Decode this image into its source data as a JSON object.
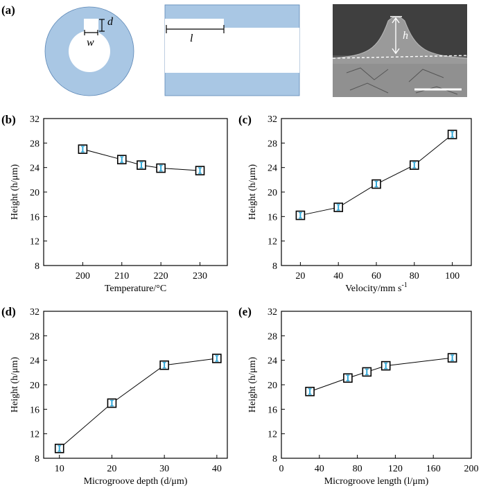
{
  "panel_labels": {
    "a": "(a)",
    "b": "(b)",
    "c": "(c)",
    "d": "(d)",
    "e": "(e)"
  },
  "schematic": {
    "label_d": "d",
    "label_w": "w",
    "label_l": "l",
    "label_h": "h",
    "colors": {
      "fill": "#a9c7e4",
      "sem_bg": "#6d6d6d"
    }
  },
  "chart_data": [
    {
      "id": "b",
      "type": "line",
      "marker": "open-square",
      "x": [
        200,
        210,
        215,
        220,
        230
      ],
      "y": [
        27,
        25.3,
        24.4,
        23.9,
        23.5
      ],
      "xlabel": "Temperature/°C",
      "ylabel": "Height (h/μm)",
      "xlim": [
        190,
        237
      ],
      "ylim": [
        8,
        32
      ],
      "xticks": [
        200,
        210,
        220,
        230
      ],
      "yticks": [
        8,
        12,
        16,
        20,
        24,
        28,
        32
      ]
    },
    {
      "id": "c",
      "type": "line",
      "marker": "open-square",
      "x": [
        20,
        40,
        60,
        80,
        100
      ],
      "y": [
        16.2,
        17.5,
        21.3,
        24.4,
        29.4
      ],
      "xlabel": "Velocity/mm s",
      "xlabel_sup": "-1",
      "ylabel": "Height (h/μm)",
      "xlim": [
        10,
        110
      ],
      "ylim": [
        8,
        32
      ],
      "xticks": [
        20,
        40,
        60,
        80,
        100
      ],
      "yticks": [
        8,
        12,
        16,
        20,
        24,
        28,
        32
      ]
    },
    {
      "id": "d",
      "type": "line",
      "marker": "open-square",
      "x": [
        10,
        20,
        30,
        40
      ],
      "y": [
        9.6,
        17,
        23.2,
        24.3
      ],
      "xlabel": "Microgroove depth (d/μm)",
      "ylabel": "Height (h/μm)",
      "xlim": [
        7,
        42
      ],
      "ylim": [
        8,
        32
      ],
      "xticks": [
        10,
        20,
        30,
        40
      ],
      "yticks": [
        8,
        12,
        16,
        20,
        24,
        28,
        32
      ]
    },
    {
      "id": "e",
      "type": "line",
      "marker": "open-square",
      "x": [
        30,
        70,
        90,
        110,
        180
      ],
      "y": [
        18.9,
        21.1,
        22.1,
        23.1,
        24.4
      ],
      "xlabel": "Microgroove length (l/μm)",
      "ylabel": "Height (h/μm)",
      "xlim": [
        0,
        200
      ],
      "ylim": [
        8,
        32
      ],
      "xticks": [
        0,
        40,
        80,
        120,
        160,
        200
      ],
      "yticks": [
        8,
        12,
        16,
        20,
        24,
        28,
        32
      ]
    }
  ]
}
